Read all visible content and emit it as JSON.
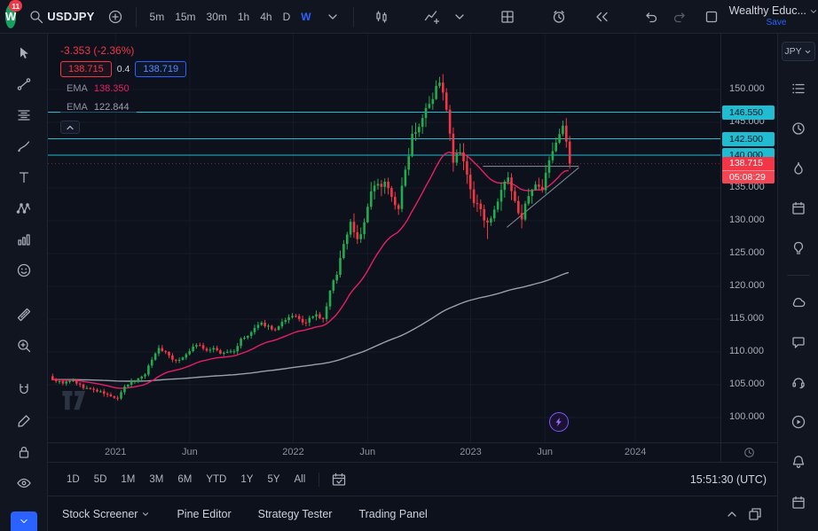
{
  "header": {
    "avatar_badge": "11",
    "symbol": "USDJPY",
    "timeframes": [
      "5m",
      "15m",
      "30m",
      "1h",
      "4h",
      "D",
      "W"
    ],
    "active_timeframe": "W",
    "layout_name": "Wealthy Educ...",
    "save_label": "Save"
  },
  "left_toolbar": {
    "tools": [
      "cursor",
      "trend-line",
      "fib-retracement",
      "brush",
      "text",
      "xabcd-pattern",
      "forecast",
      "emoji",
      "ruler",
      "zoom",
      "magnet",
      "draw",
      "lock",
      "eye"
    ]
  },
  "right_rail": {
    "currency": "JPY",
    "icon_groups": [
      [
        "watchlist",
        "alerts",
        "hotlists",
        "calendar",
        "ideas"
      ],
      [
        "minds",
        "chat",
        "support",
        "streams",
        "notifications",
        "economic-calendar"
      ]
    ]
  },
  "chart": {
    "change_text": "-3.353 (-2.36%)",
    "price_widget": {
      "bid": "138.715",
      "spread": "0.4",
      "ask": "138.719"
    }
  },
  "chart_data": {
    "type": "candlestick",
    "symbol": "USDJPY",
    "interval": "W",
    "weeks": 152,
    "ylim": [
      96,
      158.5
    ],
    "y_ticks": [
      150,
      145,
      140,
      135,
      130,
      125,
      120,
      115,
      110,
      105,
      100
    ],
    "x_labels": [
      {
        "text": "2021",
        "week": 18.7
      },
      {
        "text": "Jun",
        "week": 40.4
      },
      {
        "text": "2022",
        "week": 70.6
      },
      {
        "text": "Jun",
        "week": 92.3
      },
      {
        "text": "2023",
        "week": 122.4
      },
      {
        "text": "Jun",
        "week": 144.1
      },
      {
        "text": "2024",
        "week": 170.5
      }
    ],
    "levels": [
      {
        "price": 146.55,
        "label": "146.550"
      },
      {
        "price": 142.5,
        "label": "142.500"
      },
      {
        "price": 140.0,
        "label": "140.000"
      }
    ],
    "current_price": {
      "value": 138.715,
      "label": "138.715",
      "countdown": "05:08:29",
      "direction": "down"
    },
    "emas": [
      {
        "label": "EMA",
        "value": "138.350",
        "color": "#e91e63",
        "alpha": 0.075
      },
      {
        "label": "EMA",
        "value": "122.844",
        "color": "#9aa0ab",
        "alpha": 0.0095
      }
    ],
    "colors": {
      "up": "#22ab4f",
      "down": "#f23645",
      "level": "#1fbcd2",
      "accent": "#2962ff"
    },
    "anchors": [
      [
        0,
        105.8
      ],
      [
        3,
        105.3
      ],
      [
        6,
        105.6
      ],
      [
        9,
        104.6
      ],
      [
        12,
        104.2
      ],
      [
        15,
        103.7
      ],
      [
        17,
        103.2
      ],
      [
        19,
        102.9
      ],
      [
        21,
        104.6
      ],
      [
        23,
        105.4
      ],
      [
        25,
        105.9
      ],
      [
        27,
        106.7
      ],
      [
        29,
        108.9
      ],
      [
        31,
        110.6
      ],
      [
        33,
        109.9
      ],
      [
        35,
        108.9
      ],
      [
        37,
        108.8
      ],
      [
        39,
        109.6
      ],
      [
        41,
        110.8
      ],
      [
        43,
        111.0
      ],
      [
        45,
        110.2
      ],
      [
        47,
        110.6
      ],
      [
        49,
        109.7
      ],
      [
        51,
        110.0
      ],
      [
        53,
        110.1
      ],
      [
        55,
        111.9
      ],
      [
        57,
        112.4
      ],
      [
        59,
        113.6
      ],
      [
        61,
        114.3
      ],
      [
        63,
        113.9
      ],
      [
        65,
        113.3
      ],
      [
        67,
        114.4
      ],
      [
        69,
        115.1
      ],
      [
        71,
        115.6
      ],
      [
        73,
        114.3
      ],
      [
        75,
        115.0
      ],
      [
        77,
        115.6
      ],
      [
        79,
        114.9
      ],
      [
        81,
        119.2
      ],
      [
        83,
        122.1
      ],
      [
        85,
        126.4
      ],
      [
        87,
        129.8
      ],
      [
        89,
        127.2
      ],
      [
        91,
        129.4
      ],
      [
        93,
        134.4
      ],
      [
        95,
        135.2
      ],
      [
        97,
        136.3
      ],
      [
        99,
        133.4
      ],
      [
        101,
        132.1
      ],
      [
        103,
        137.6
      ],
      [
        105,
        143.3
      ],
      [
        107,
        144.7
      ],
      [
        109,
        147.6
      ],
      [
        111,
        148.8
      ],
      [
        113,
        151.5
      ],
      [
        115,
        146.7
      ],
      [
        117,
        139.0
      ],
      [
        119,
        140.4
      ],
      [
        121,
        136.6
      ],
      [
        123,
        133.0
      ],
      [
        125,
        131.2
      ],
      [
        127,
        129.9
      ],
      [
        129,
        131.2
      ],
      [
        131,
        134.8
      ],
      [
        133,
        136.3
      ],
      [
        135,
        132.6
      ],
      [
        137,
        130.8
      ],
      [
        139,
        133.3
      ],
      [
        141,
        135.1
      ],
      [
        143,
        134.3
      ],
      [
        145,
        139.4
      ],
      [
        147,
        141.9
      ],
      [
        149,
        144.5
      ],
      [
        150,
        142.068
      ],
      [
        151,
        138.715
      ]
    ],
    "key_points": [
      {
        "week": 19,
        "low": 102.59
      },
      {
        "week": 113,
        "high": 151.94
      },
      {
        "week": 127,
        "low": 127.21
      },
      {
        "week": 149,
        "high": 145.07
      }
    ],
    "last_candle": {
      "open": 142.068,
      "high": 142.93,
      "low": 137.92,
      "close": 138.715
    },
    "trendlines": [
      {
        "from": [
          126,
          138.3
        ],
        "to": [
          154,
          138.3
        ]
      },
      {
        "from": [
          133,
          129.0
        ],
        "to": [
          154,
          138.1
        ]
      }
    ]
  },
  "range_bar": {
    "ranges": [
      "1D",
      "5D",
      "1M",
      "3M",
      "6M",
      "YTD",
      "1Y",
      "5Y",
      "All"
    ],
    "clock": "15:51:30 (UTC)"
  },
  "footer": {
    "tabs": [
      "Stock Screener",
      "Pine Editor",
      "Strategy Tester",
      "Trading Panel"
    ]
  }
}
